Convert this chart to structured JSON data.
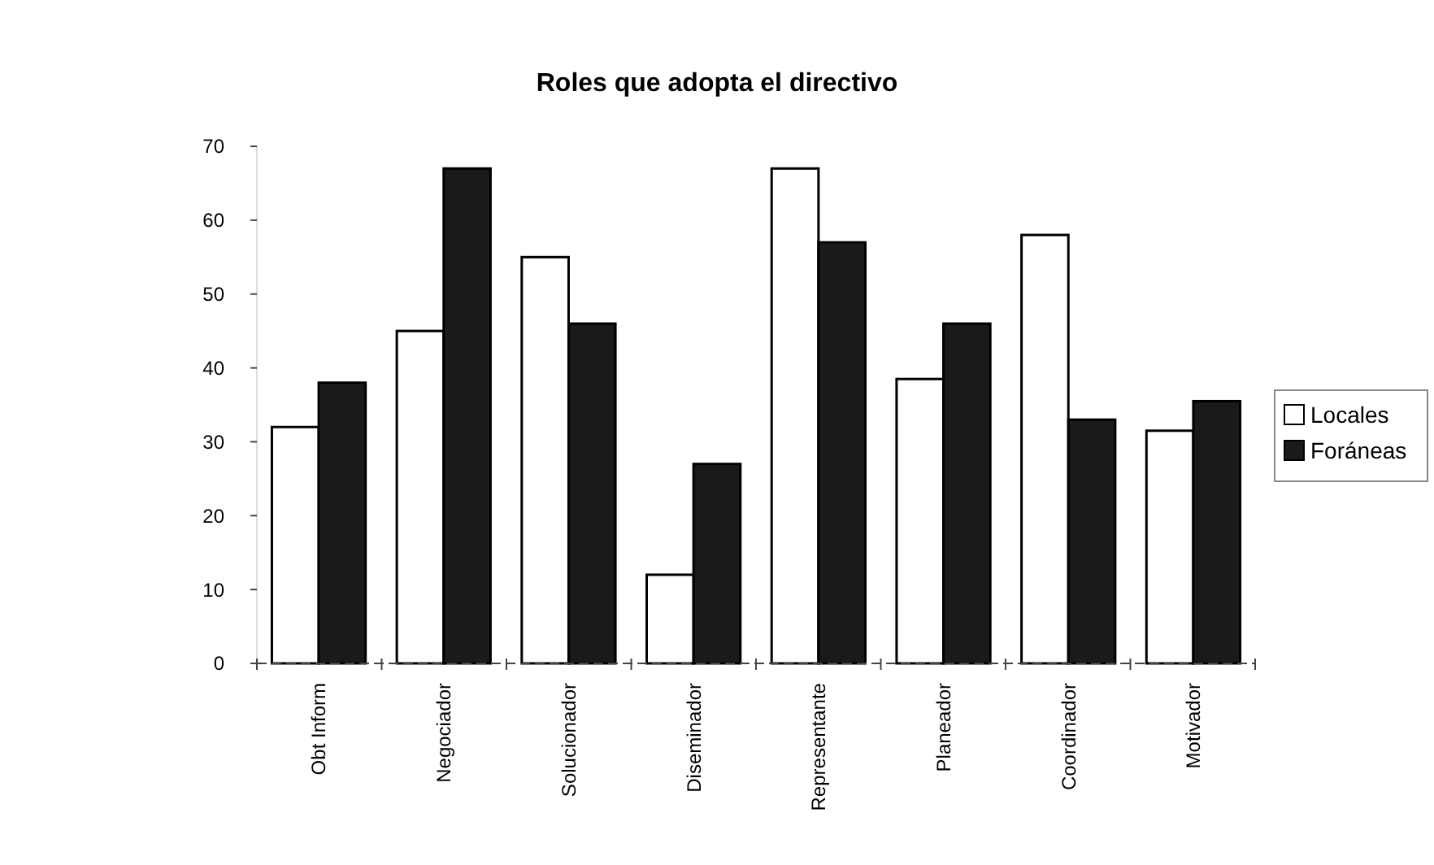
{
  "chart_data": {
    "type": "bar",
    "title": "Roles que adopta el directivo",
    "categories": [
      "Obt  Inform",
      "Negociador",
      "Solucionador",
      "Diseminador",
      "Representante",
      "Planeador",
      "Coordinador",
      "Motivador"
    ],
    "series": [
      {
        "name": "Locales",
        "color": "#ffffff",
        "values": [
          32,
          45,
          55,
          12,
          67,
          38.5,
          58,
          31.5
        ]
      },
      {
        "name": "Foráneas",
        "color": "#1a1a1a",
        "values": [
          38,
          67,
          46,
          27,
          57,
          46,
          33,
          35.5
        ]
      }
    ],
    "ylim": [
      0,
      70
    ],
    "yticks": [
      0,
      10,
      20,
      30,
      40,
      50,
      60,
      70
    ],
    "grid": false,
    "legend": "right"
  }
}
